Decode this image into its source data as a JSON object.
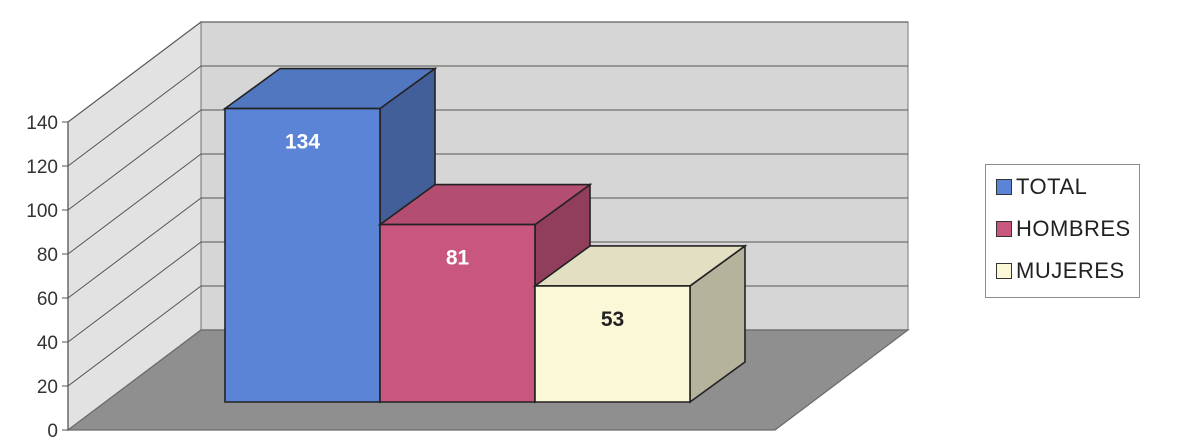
{
  "chart_data": {
    "type": "bar",
    "categories": [
      "TOTAL",
      "HOMBRES",
      "MUJERES"
    ],
    "values": [
      134,
      81,
      53
    ],
    "data_labels": [
      "134",
      "81",
      "53"
    ],
    "series": [
      {
        "name": "TOTAL",
        "value": 134,
        "color": "#5b84d6"
      },
      {
        "name": "HOMBRES",
        "value": 81,
        "color": "#c8567f"
      },
      {
        "name": "MUJERES",
        "value": 53,
        "color": "#fbf8d8"
      }
    ],
    "title": "",
    "xlabel": "",
    "ylabel": "",
    "ylim": [
      0,
      140
    ],
    "yticks": [
      "0",
      "20",
      "40",
      "60",
      "80",
      "100",
      "120",
      "140"
    ],
    "grid": true,
    "legend_position": "right",
    "style": "3d-column"
  }
}
